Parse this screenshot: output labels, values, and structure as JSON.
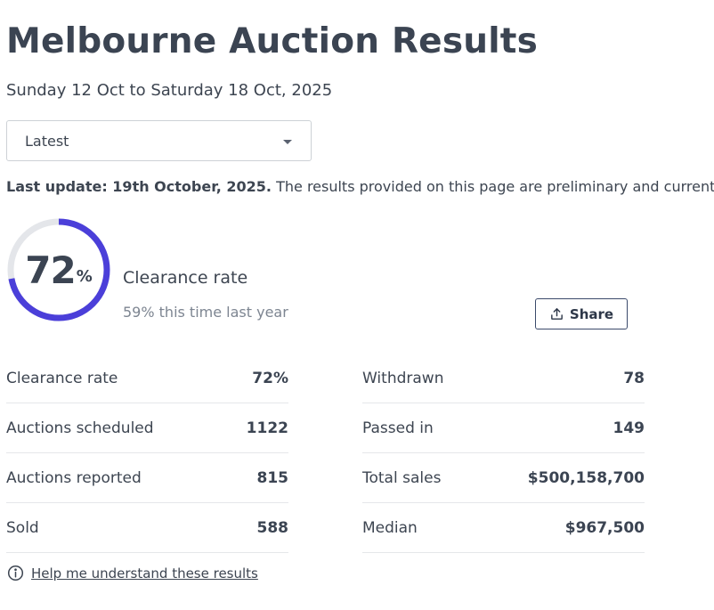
{
  "page": {
    "title": "Melbourne Auction Results",
    "date_range": "Sunday 12 Oct to Saturday 18 Oct, 2025"
  },
  "period_select": {
    "selected": "Latest"
  },
  "update": {
    "label": "Last update: 19th October, 2025.",
    "text": "The results provided on this page are preliminary and current at"
  },
  "clearance": {
    "value": "72",
    "unit": "%",
    "fraction": 0.72,
    "label": "Clearance rate",
    "last_year": "59% this time last year",
    "ring_color": "#4b3fd9",
    "track_color": "#e4e6ea"
  },
  "share": {
    "label": "Share",
    "icon": "share-upload-icon"
  },
  "stats": {
    "left": [
      {
        "label": "Clearance rate",
        "value": "72%"
      },
      {
        "label": "Auctions scheduled",
        "value": "1122"
      },
      {
        "label": "Auctions reported",
        "value": "815"
      },
      {
        "label": "Sold",
        "value": "588"
      }
    ],
    "right": [
      {
        "label": "Withdrawn",
        "value": "78"
      },
      {
        "label": "Passed in",
        "value": "149"
      },
      {
        "label": "Total sales",
        "value": "$500,158,700"
      },
      {
        "label": "Median",
        "value": "$967,500"
      }
    ]
  },
  "help": {
    "label": "Help me understand these results",
    "icon": "info-circle-icon"
  }
}
